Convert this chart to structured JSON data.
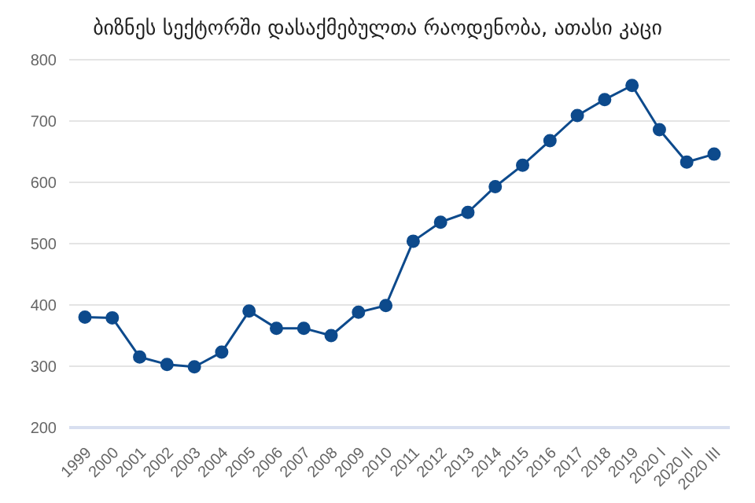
{
  "chart_data": {
    "type": "line",
    "title": "ბიზნეს სექტორში დასაქმებულთა რაოდენობა, ათასი კაცი",
    "categories": [
      "1999",
      "2000",
      "2001",
      "2002",
      "2003",
      "2004",
      "2005",
      "2006",
      "2007",
      "2008",
      "2009",
      "2010",
      "2011",
      "2012",
      "2013",
      "2014",
      "2015",
      "2016",
      "2017",
      "2018",
      "2019",
      "2020 I",
      "2020 II",
      "2020 III"
    ],
    "series": [
      {
        "color": "#0d4a8c",
        "values": [
          380,
          379,
          315,
          303,
          299,
          323,
          390,
          362,
          362,
          350,
          388,
          399,
          504,
          535,
          551,
          593,
          628,
          668,
          709,
          735,
          758,
          686,
          633,
          646
        ]
      }
    ],
    "ylim": [
      200,
      800
    ],
    "yticks": [
      200,
      300,
      400,
      500,
      600,
      700,
      800
    ],
    "grid": "y",
    "marker": "circle",
    "line_style": "solid"
  }
}
